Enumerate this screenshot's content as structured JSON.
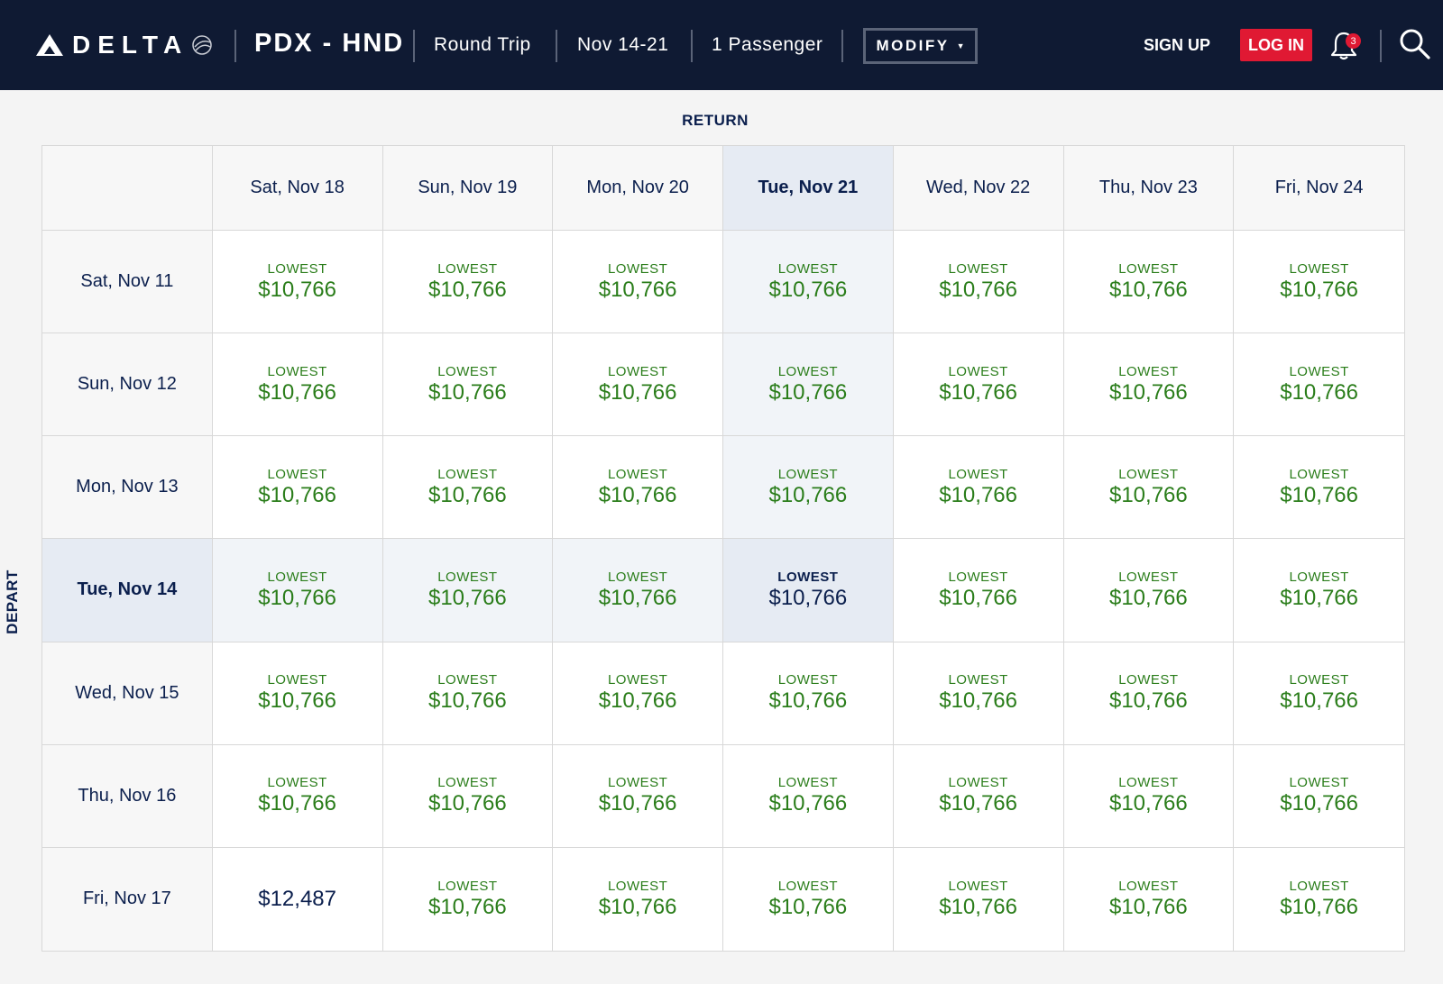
{
  "header": {
    "brand": "DELTA",
    "route": "PDX - HND",
    "trip_type": "Round Trip",
    "dates": "Nov 14-21",
    "passengers": "1 Passenger",
    "modify_label": "MODIFY",
    "signup_label": "SIGN UP",
    "login_label": "LOG IN",
    "notification_count": "3",
    "colors": {
      "bar": "#0f1a33",
      "login": "#e01933"
    }
  },
  "grid": {
    "return_label": "RETURN",
    "depart_label": "DEPART",
    "return_dates": [
      "Sat, Nov 18",
      "Sun, Nov 19",
      "Mon, Nov 20",
      "Tue, Nov 21",
      "Wed, Nov 22",
      "Thu, Nov 23",
      "Fri, Nov 24"
    ],
    "depart_dates": [
      "Sat, Nov 11",
      "Sun, Nov 12",
      "Mon, Nov 13",
      "Tue, Nov 14",
      "Wed, Nov 15",
      "Thu, Nov 16",
      "Fri, Nov 17"
    ],
    "selected_return": "Tue, Nov 21",
    "selected_depart": "Tue, Nov 14",
    "lowest_label": "LOWEST",
    "rows": [
      [
        {
          "price": "$10,766",
          "lowest": true
        },
        {
          "price": "$10,766",
          "lowest": true
        },
        {
          "price": "$10,766",
          "lowest": true
        },
        {
          "price": "$10,766",
          "lowest": true
        },
        {
          "price": "$10,766",
          "lowest": true
        },
        {
          "price": "$10,766",
          "lowest": true
        },
        {
          "price": "$10,766",
          "lowest": true
        }
      ],
      [
        {
          "price": "$10,766",
          "lowest": true
        },
        {
          "price": "$10,766",
          "lowest": true
        },
        {
          "price": "$10,766",
          "lowest": true
        },
        {
          "price": "$10,766",
          "lowest": true
        },
        {
          "price": "$10,766",
          "lowest": true
        },
        {
          "price": "$10,766",
          "lowest": true
        },
        {
          "price": "$10,766",
          "lowest": true
        }
      ],
      [
        {
          "price": "$10,766",
          "lowest": true
        },
        {
          "price": "$10,766",
          "lowest": true
        },
        {
          "price": "$10,766",
          "lowest": true
        },
        {
          "price": "$10,766",
          "lowest": true
        },
        {
          "price": "$10,766",
          "lowest": true
        },
        {
          "price": "$10,766",
          "lowest": true
        },
        {
          "price": "$10,766",
          "lowest": true
        }
      ],
      [
        {
          "price": "$10,766",
          "lowest": true
        },
        {
          "price": "$10,766",
          "lowest": true
        },
        {
          "price": "$10,766",
          "lowest": true
        },
        {
          "price": "$10,766",
          "lowest": true
        },
        {
          "price": "$10,766",
          "lowest": true
        },
        {
          "price": "$10,766",
          "lowest": true
        },
        {
          "price": "$10,766",
          "lowest": true
        }
      ],
      [
        {
          "price": "$10,766",
          "lowest": true
        },
        {
          "price": "$10,766",
          "lowest": true
        },
        {
          "price": "$10,766",
          "lowest": true
        },
        {
          "price": "$10,766",
          "lowest": true
        },
        {
          "price": "$10,766",
          "lowest": true
        },
        {
          "price": "$10,766",
          "lowest": true
        },
        {
          "price": "$10,766",
          "lowest": true
        }
      ],
      [
        {
          "price": "$10,766",
          "lowest": true
        },
        {
          "price": "$10,766",
          "lowest": true
        },
        {
          "price": "$10,766",
          "lowest": true
        },
        {
          "price": "$10,766",
          "lowest": true
        },
        {
          "price": "$10,766",
          "lowest": true
        },
        {
          "price": "$10,766",
          "lowest": true
        },
        {
          "price": "$10,766",
          "lowest": true
        }
      ],
      [
        {
          "price": "$12,487",
          "lowest": false
        },
        {
          "price": "$10,766",
          "lowest": true
        },
        {
          "price": "$10,766",
          "lowest": true
        },
        {
          "price": "$10,766",
          "lowest": true
        },
        {
          "price": "$10,766",
          "lowest": true
        },
        {
          "price": "$10,766",
          "lowest": true
        },
        {
          "price": "$10,766",
          "lowest": true
        }
      ]
    ],
    "colors": {
      "lowest_price": "#2a7d1a",
      "text": "#0b1f4d",
      "selected_bg": "#e6ebf3",
      "highlight_bg": "#f1f4f8"
    }
  }
}
